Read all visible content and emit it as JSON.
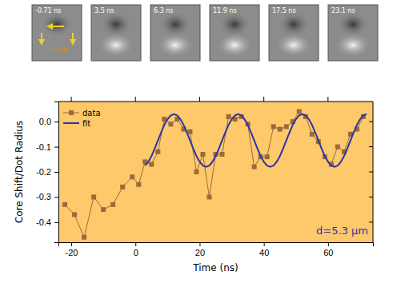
{
  "chart_data": {
    "type": "line",
    "x_label": "Time (ns)",
    "y_label": "Core Shift/Dot Radius",
    "annotation": "d=5.3 µm",
    "panel_labels": [
      "-0.71 ns",
      "3.5 ns",
      "6.3 ns",
      "11.9 ns",
      "17.5 ns",
      "23.1 ns"
    ],
    "xlim": [
      -24,
      74
    ],
    "xticks": [
      -20,
      0,
      20,
      40,
      60
    ],
    "ylim": [
      -0.48,
      0.08
    ],
    "yticks": [
      {
        "value": 0,
        "label": "0.0"
      },
      -0.1,
      -0.2,
      -0.3,
      -0.4
    ],
    "legend": "top-left",
    "series": [
      {
        "name": "data",
        "color": "#9a6a3a",
        "marker": "square",
        "line_style": "solid",
        "x": [
          -22,
          -19,
          -16,
          -13,
          -10,
          -7,
          -4,
          -1,
          1,
          3,
          5,
          7,
          9,
          11,
          13,
          15,
          17,
          19,
          21,
          23,
          25,
          27,
          29,
          31,
          33,
          35,
          37,
          39,
          41,
          43,
          45,
          47,
          49,
          51,
          53,
          55,
          57,
          59,
          61,
          63,
          65,
          67,
          69,
          71
        ],
        "values": [
          -0.33,
          -0.37,
          -0.46,
          -0.3,
          -0.35,
          -0.33,
          -0.26,
          -0.22,
          -0.25,
          -0.16,
          -0.17,
          -0.12,
          0.01,
          -0.01,
          0.01,
          -0.03,
          -0.04,
          -0.2,
          -0.13,
          -0.3,
          -0.13,
          -0.13,
          0.02,
          0.01,
          0.02,
          -0.01,
          -0.18,
          -0.14,
          -0.14,
          -0.02,
          -0.03,
          -0.02,
          0.0,
          0.04,
          0.02,
          -0.05,
          -0.08,
          -0.14,
          -0.17,
          -0.1,
          -0.12,
          -0.05,
          -0.03,
          0.02
        ]
      },
      {
        "name": "fit",
        "color": "#2b35a8",
        "marker": "none",
        "line_style": "solid",
        "x": [
          3,
          4,
          5,
          6,
          7,
          8,
          9,
          10,
          11,
          12,
          13,
          14,
          15,
          16,
          17,
          18,
          19,
          20,
          21,
          22,
          23,
          24,
          25,
          26,
          27,
          28,
          29,
          30,
          31,
          32,
          33,
          34,
          35,
          36,
          37,
          38,
          39,
          40,
          41,
          42,
          43,
          44,
          45,
          46,
          47,
          48,
          49,
          50,
          51,
          52,
          53,
          54,
          55,
          56,
          57,
          58,
          59,
          60,
          61,
          62,
          63,
          64,
          65,
          66,
          67,
          68,
          69,
          70,
          71,
          72
        ],
        "values": [
          -0.175,
          -0.16,
          -0.137,
          -0.107,
          -0.075,
          -0.043,
          -0.013,
          0.01,
          0.025,
          0.03,
          0.025,
          0.01,
          -0.013,
          -0.043,
          -0.075,
          -0.107,
          -0.137,
          -0.16,
          -0.175,
          -0.18,
          -0.175,
          -0.16,
          -0.137,
          -0.107,
          -0.075,
          -0.043,
          -0.013,
          0.01,
          0.025,
          0.03,
          0.025,
          0.01,
          -0.013,
          -0.043,
          -0.075,
          -0.107,
          -0.137,
          -0.16,
          -0.175,
          -0.18,
          -0.175,
          -0.16,
          -0.137,
          -0.107,
          -0.075,
          -0.043,
          -0.013,
          0.01,
          0.025,
          0.03,
          0.025,
          0.01,
          -0.013,
          -0.043,
          -0.075,
          -0.107,
          -0.137,
          -0.16,
          -0.175,
          -0.18,
          -0.175,
          -0.16,
          -0.137,
          -0.107,
          -0.075,
          -0.043,
          -0.013,
          0.01,
          0.025,
          0.03
        ]
      }
    ]
  }
}
